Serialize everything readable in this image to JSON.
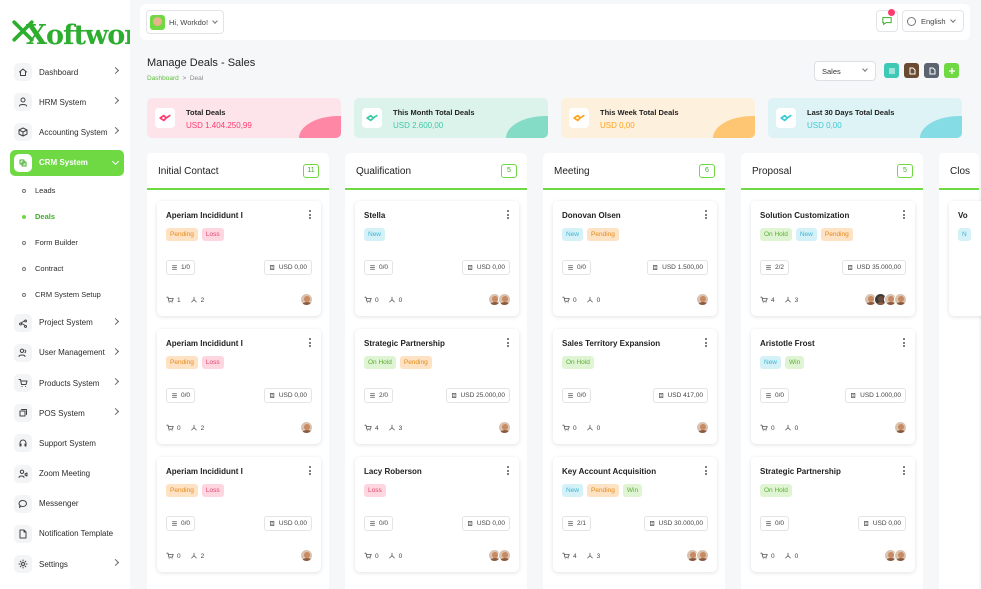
{
  "brand": {
    "logo_text": "Xoftwork"
  },
  "header": {
    "user_greeting": "Hi, Workdo!",
    "language": "English"
  },
  "page": {
    "title": "Manage Deals - Sales",
    "breadcrumb_home": "Dashboard",
    "breadcrumb_sep": ">",
    "breadcrumb_current": "Deal",
    "pipeline_select": "Sales"
  },
  "sidebar": {
    "items": [
      {
        "label": "Dashboard",
        "icon": "home-icon"
      },
      {
        "label": "HRM System",
        "icon": "user-icon"
      },
      {
        "label": "Accounting System",
        "icon": "box-icon"
      },
      {
        "label": "CRM System",
        "icon": "layers-icon"
      },
      {
        "label": "Project System",
        "icon": "share-icon"
      },
      {
        "label": "User Management",
        "icon": "users-icon"
      },
      {
        "label": "Products System",
        "icon": "cart-icon"
      },
      {
        "label": "POS System",
        "icon": "stack-icon"
      },
      {
        "label": "Support System",
        "icon": "headset-icon"
      },
      {
        "label": "Zoom Meeting",
        "icon": "user-video-icon"
      },
      {
        "label": "Messenger",
        "icon": "chat-icon"
      },
      {
        "label": "Notification Template",
        "icon": "bell-doc-icon"
      },
      {
        "label": "Settings",
        "icon": "gear-icon"
      }
    ],
    "crm_sub": [
      "Leads",
      "Deals",
      "Form Builder",
      "Contract",
      "CRM System Setup"
    ]
  },
  "stats": [
    {
      "label": "Total Deals",
      "value": "USD 1.404.250,99",
      "color": "#ff3a6e",
      "bg": "#fde4ea"
    },
    {
      "label": "This Month Total Deals",
      "value": "USD 2.600,00",
      "color": "#3ec9a7",
      "bg": "#dcf3ec"
    },
    {
      "label": "This Week Total Deals",
      "value": "USD 0,00",
      "color": "#ffa21d",
      "bg": "#fdf0dc"
    },
    {
      "label": "Last 30 Days Total Deals",
      "value": "USD 0,00",
      "color": "#3ec9d6",
      "bg": "#ddf3f6"
    }
  ],
  "columns": [
    {
      "title": "Initial Contact",
      "count": "11",
      "cards": [
        {
          "title": "Aperiam Incididunt I",
          "badges": [
            "Pending",
            "Loss"
          ],
          "tasks": "1/0",
          "price": "USD 0,00",
          "products": "1",
          "sources": "2",
          "avatars": 1
        },
        {
          "title": "Aperiam Incididunt I",
          "badges": [
            "Pending",
            "Loss"
          ],
          "tasks": "0/0",
          "price": "USD 0,00",
          "products": "0",
          "sources": "2",
          "avatars": 1
        },
        {
          "title": "Aperiam Incididunt I",
          "badges": [
            "Pending",
            "Loss"
          ],
          "tasks": "0/0",
          "price": "USD 0,00",
          "products": "0",
          "sources": "2",
          "avatars": 1
        }
      ]
    },
    {
      "title": "Qualification",
      "count": "5",
      "cards": [
        {
          "title": "Stella",
          "badges": [
            "New"
          ],
          "tasks": "0/0",
          "price": "USD 0,00",
          "products": "0",
          "sources": "0",
          "avatars": 2
        },
        {
          "title": "Strategic Partnership",
          "badges": [
            "On Hold",
            "Pending"
          ],
          "tasks": "2/0",
          "price": "USD 25.000,00",
          "products": "4",
          "sources": "3",
          "avatars": 1
        },
        {
          "title": "Lacy Roberson",
          "badges": [
            "Loss"
          ],
          "tasks": "0/0",
          "price": "USD 0,00",
          "products": "0",
          "sources": "0",
          "avatars": 2
        }
      ]
    },
    {
      "title": "Meeting",
      "count": "6",
      "cards": [
        {
          "title": "Donovan Olsen",
          "badges": [
            "New",
            "Pending"
          ],
          "tasks": "0/0",
          "price": "USD 1.500,00",
          "products": "0",
          "sources": "0",
          "avatars": 1
        },
        {
          "title": "Sales Territory Expansion",
          "badges": [
            "On Hold"
          ],
          "tasks": "0/0",
          "price": "USD 417,00",
          "products": "0",
          "sources": "0",
          "avatars": 1
        },
        {
          "title": "Key Account Acquisition",
          "badges": [
            "New",
            "Pending",
            "Win"
          ],
          "tasks": "2/1",
          "price": "USD 30.000,00",
          "products": "4",
          "sources": "3",
          "avatars": 2
        }
      ]
    },
    {
      "title": "Proposal",
      "count": "5",
      "cards": [
        {
          "title": "Solution Customization",
          "badges": [
            "On Hold",
            "New",
            "Pending"
          ],
          "tasks": "2/2",
          "price": "USD 35.000,00",
          "products": "4",
          "sources": "3",
          "avatars": 4
        },
        {
          "title": "Aristotle Frost",
          "badges": [
            "New",
            "Win"
          ],
          "tasks": "0/0",
          "price": "USD 1.000,00",
          "products": "0",
          "sources": "0",
          "avatars": 1
        },
        {
          "title": "Strategic Partnership",
          "badges": [
            "On Hold"
          ],
          "tasks": "0/0",
          "price": "USD 0,00",
          "products": "0",
          "sources": "0",
          "avatars": 2
        }
      ]
    },
    {
      "title": "Clos",
      "count": "",
      "cards": [
        {
          "title": "Vo",
          "badges": [
            "N"
          ],
          "tasks": "",
          "price": "",
          "products": "",
          "sources": "",
          "avatars": 0
        }
      ]
    }
  ]
}
